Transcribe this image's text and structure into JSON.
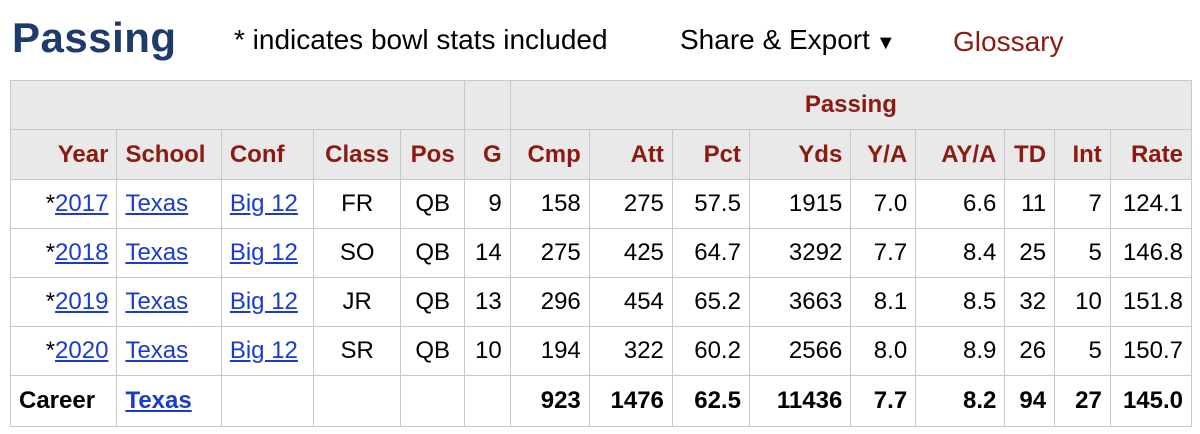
{
  "header": {
    "title": "Passing",
    "note": "* indicates bowl stats included",
    "share_label": "Share & Export",
    "share_arrow": "▼",
    "glossary_label": "Glossary"
  },
  "table": {
    "group_header": "Passing",
    "columns": [
      "Year",
      "School",
      "Conf",
      "Class",
      "Pos",
      "G",
      "Cmp",
      "Att",
      "Pct",
      "Yds",
      "Y/A",
      "AY/A",
      "TD",
      "Int",
      "Rate"
    ],
    "rows": [
      {
        "bowl": "*",
        "year": "2017",
        "school": "Texas",
        "conf": "Big 12",
        "class": "FR",
        "pos": "QB",
        "g": "9",
        "cmp": "158",
        "att": "275",
        "pct": "57.5",
        "yds": "1915",
        "ya": "7.0",
        "aya": "6.6",
        "td": "11",
        "int": "7",
        "rate": "124.1"
      },
      {
        "bowl": "*",
        "year": "2018",
        "school": "Texas",
        "conf": "Big 12",
        "class": "SO",
        "pos": "QB",
        "g": "14",
        "cmp": "275",
        "att": "425",
        "pct": "64.7",
        "yds": "3292",
        "ya": "7.7",
        "aya": "8.4",
        "td": "25",
        "int": "5",
        "rate": "146.8"
      },
      {
        "bowl": "*",
        "year": "2019",
        "school": "Texas",
        "conf": "Big 12",
        "class": "JR",
        "pos": "QB",
        "g": "13",
        "cmp": "296",
        "att": "454",
        "pct": "65.2",
        "yds": "3663",
        "ya": "8.1",
        "aya": "8.5",
        "td": "32",
        "int": "10",
        "rate": "151.8"
      },
      {
        "bowl": "*",
        "year": "2020",
        "school": "Texas",
        "conf": "Big 12",
        "class": "SR",
        "pos": "QB",
        "g": "10",
        "cmp": "194",
        "att": "322",
        "pct": "60.2",
        "yds": "2566",
        "ya": "8.0",
        "aya": "8.9",
        "td": "26",
        "int": "5",
        "rate": "150.7"
      }
    ],
    "career": {
      "label": "Career",
      "school": "Texas",
      "cmp": "923",
      "att": "1476",
      "pct": "62.5",
      "yds": "11436",
      "ya": "7.7",
      "aya": "8.2",
      "td": "94",
      "int": "27",
      "rate": "145.0"
    }
  },
  "colors": {
    "title": "#1f3a6b",
    "header_text": "#8c1a11",
    "link": "#1a3ccc",
    "header_bg": "#e9e9e9"
  }
}
